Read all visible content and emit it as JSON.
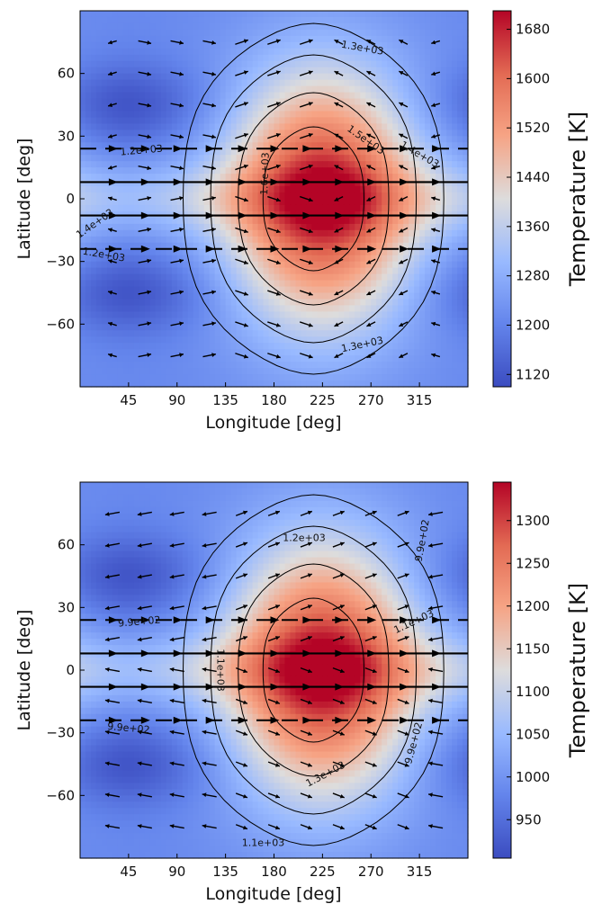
{
  "chart_data": [
    {
      "type": "heatmap",
      "title": "",
      "xlabel": "Longitude [deg]",
      "ylabel": "Latitude [deg]",
      "xlim": [
        0,
        360
      ],
      "ylim": [
        -90,
        90
      ],
      "xticks": [
        45,
        90,
        135,
        180,
        225,
        270,
        315
      ],
      "yticks": [
        60,
        30,
        0,
        -30,
        -60
      ],
      "colorbar": {
        "label": "Temperature [K]",
        "min": 1100,
        "max": 1710,
        "ticks": [
          1680,
          1600,
          1520,
          1440,
          1360,
          1280,
          1200,
          1120
        ]
      },
      "field": {
        "hotspot_lon": 225,
        "hotspot_lat": 0,
        "t_min": 1110,
        "t_max": 1700
      },
      "contour_labels": [
        {
          "text": "1.3e+03",
          "lon": 262,
          "lat": 72,
          "rot": 10
        },
        {
          "text": "1.3e+03",
          "lon": 262,
          "lat": -70,
          "rot": -12
        },
        {
          "text": "1.5e+03",
          "lon": 265,
          "lat": 28,
          "rot": 35
        },
        {
          "text": "1.4e+03",
          "lon": 315,
          "lat": 21,
          "rot": 30
        },
        {
          "text": "1.2e+03",
          "lon": 57,
          "lat": 23,
          "rot": -5
        },
        {
          "text": "1.6e+03",
          "lon": 172,
          "lat": 12,
          "rot": -88
        },
        {
          "text": "1.4e+03",
          "lon": 14,
          "lat": -12,
          "rot": -35
        },
        {
          "text": "1.2e+03",
          "lon": 22,
          "lat": -27,
          "rot": 10
        }
      ],
      "wind_jets_lat": [
        24,
        8,
        -8,
        -24
      ],
      "vectors": "quiver"
    },
    {
      "type": "heatmap",
      "title": "",
      "xlabel": "Longitude [deg]",
      "ylabel": "Latitude [deg]",
      "xlim": [
        0,
        360
      ],
      "ylim": [
        -90,
        90
      ],
      "xticks": [
        45,
        90,
        135,
        180,
        225,
        270,
        315
      ],
      "yticks": [
        60,
        30,
        0,
        -30,
        -60
      ],
      "colorbar": {
        "label": "Temperature [K]",
        "min": 905,
        "max": 1345,
        "ticks": [
          1300,
          1250,
          1200,
          1150,
          1100,
          1050,
          1000,
          950
        ]
      },
      "field": {
        "hotspot_lon": 225,
        "hotspot_lat": 0,
        "t_min": 920,
        "t_max": 1335
      },
      "contour_labels": [
        {
          "text": "1.2e+03",
          "lon": 208,
          "lat": 63,
          "rot": 0
        },
        {
          "text": "9.9e+02",
          "lon": 318,
          "lat": 62,
          "rot": -80
        },
        {
          "text": "9.9e+02",
          "lon": 55,
          "lat": 23,
          "rot": -5
        },
        {
          "text": "1.1e+03",
          "lon": 310,
          "lat": 23,
          "rot": -25
        },
        {
          "text": "1.1e+03",
          "lon": 130,
          "lat": 0,
          "rot": 90
        },
        {
          "text": "9.9e+02",
          "lon": 45,
          "lat": -28,
          "rot": 5
        },
        {
          "text": "9.9e+02",
          "lon": 310,
          "lat": -35,
          "rot": -75
        },
        {
          "text": "1.3e+03",
          "lon": 228,
          "lat": -50,
          "rot": -28
        },
        {
          "text": "1.1e+03",
          "lon": 170,
          "lat": -83,
          "rot": 0
        }
      ],
      "wind_jets_lat": [
        24,
        8,
        -8,
        -24
      ],
      "vectors": "quiver"
    }
  ]
}
